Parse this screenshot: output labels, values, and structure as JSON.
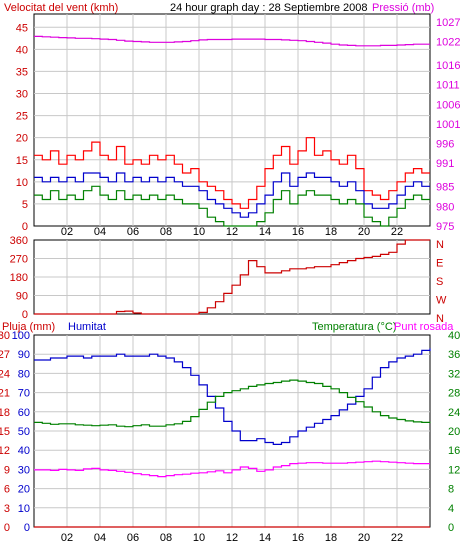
{
  "header": {
    "wind_title": "Velocitat del vent (kmh)",
    "graph_title": "24 hour graph day : 28 Septiembre 2008",
    "pressure_title": "Pressió (mb)"
  },
  "bottom_header": {
    "rain_title": "Pluja (mm)",
    "humidity_title": "Humitat",
    "temp_title": "Temperatura (°C)",
    "dew_title": "Punt rosada"
  },
  "colors": {
    "wind_gust": "#ff0000",
    "wind_avg": "#0000cc",
    "wind_low": "#008000",
    "pressure": "#dd00dd",
    "direction": "#cc0000",
    "humidity": "#0000cc",
    "temperature": "#008000",
    "dew_point": "#ff00ff",
    "rain": "#cc0000",
    "grid": "#c8c8c8",
    "dark_red_text": "#cc0000"
  },
  "time_ticks": [
    "02",
    "04",
    "06",
    "08",
    "10",
    "12",
    "14",
    "16",
    "18",
    "20",
    "22"
  ],
  "chart_data": [
    {
      "type": "line",
      "name": "wind-pressure",
      "x_hours": [
        0.0,
        0.5,
        1.0,
        1.5,
        2.0,
        2.5,
        3.0,
        3.5,
        4.0,
        4.5,
        5.0,
        5.5,
        6.0,
        6.5,
        7.0,
        7.5,
        8.0,
        8.5,
        9.0,
        9.5,
        10.0,
        10.5,
        11.0,
        11.5,
        12.0,
        12.5,
        13.0,
        13.5,
        14.0,
        14.5,
        15.0,
        15.5,
        16.0,
        16.5,
        17.0,
        17.5,
        18.0,
        18.5,
        19.0,
        19.5,
        20.0,
        20.5,
        21.0,
        21.5,
        22.0,
        22.5,
        23.0,
        23.5,
        24.0
      ],
      "left_axis": {
        "label": "Velocitat del vent (kmh)",
        "ticks": [
          0,
          5,
          10,
          15,
          20,
          25,
          30,
          35,
          40,
          45
        ],
        "range": [
          0,
          48
        ]
      },
      "right_axis": {
        "label": "Pressió (mb)",
        "ticks": [
          975,
          980,
          985,
          991,
          996,
          1001,
          1006,
          1011,
          1016,
          1022,
          1027
        ],
        "range": [
          975,
          1029
        ]
      },
      "series": [
        {
          "name": "gust",
          "axis": "left",
          "color": "#ff0000",
          "values": [
            16,
            15,
            17,
            14,
            16,
            15,
            17,
            19,
            16,
            15,
            18,
            14,
            15,
            14,
            16,
            15,
            16,
            14,
            12,
            13,
            10,
            9,
            8,
            6,
            5,
            4,
            6,
            9,
            13,
            16,
            18,
            14,
            17,
            20,
            16,
            17,
            15,
            14,
            16,
            13,
            8,
            7,
            6,
            8,
            10,
            12,
            13,
            12,
            12
          ]
        },
        {
          "name": "average",
          "axis": "left",
          "color": "#0000cc",
          "values": [
            11,
            10,
            11,
            10,
            11,
            10,
            12,
            12,
            11,
            10,
            12,
            10,
            11,
            10,
            11,
            10,
            11,
            10,
            9,
            9,
            8,
            6,
            5,
            4,
            3,
            2,
            3,
            5,
            7,
            10,
            12,
            9,
            11,
            12,
            11,
            11,
            10,
            9,
            10,
            8,
            5,
            4,
            4,
            5,
            7,
            9,
            10,
            9,
            9
          ]
        },
        {
          "name": "low",
          "axis": "left",
          "color": "#008000",
          "values": [
            7,
            6,
            8,
            6,
            7,
            6,
            8,
            9,
            7,
            6,
            8,
            6,
            7,
            6,
            7,
            6,
            7,
            6,
            5,
            5,
            4,
            2,
            1,
            0,
            0,
            0,
            0,
            1,
            3,
            6,
            8,
            5,
            7,
            8,
            7,
            7,
            6,
            5,
            6,
            5,
            2,
            1,
            0,
            2,
            4,
            6,
            7,
            6,
            6
          ]
        },
        {
          "name": "pressure",
          "axis": "right",
          "color": "#dd00dd",
          "values": [
            1023.3,
            1023.2,
            1023.1,
            1023.0,
            1022.9,
            1022.8,
            1022.8,
            1022.7,
            1022.6,
            1022.5,
            1022.3,
            1022.1,
            1022.0,
            1021.9,
            1021.8,
            1021.8,
            1021.8,
            1021.9,
            1022.0,
            1022.2,
            1022.4,
            1022.5,
            1022.5,
            1022.5,
            1022.6,
            1022.6,
            1022.6,
            1022.6,
            1022.5,
            1022.5,
            1022.4,
            1022.3,
            1022.2,
            1022.0,
            1021.8,
            1021.6,
            1021.3,
            1021.1,
            1021.0,
            1020.9,
            1020.9,
            1020.9,
            1021.0,
            1021.0,
            1021.1,
            1021.2,
            1021.3,
            1021.3,
            1021.3
          ]
        }
      ]
    },
    {
      "type": "line",
      "name": "wind-direction",
      "x_hours": [
        0.0,
        0.5,
        1.0,
        1.5,
        2.0,
        2.5,
        3.0,
        3.5,
        4.0,
        4.5,
        5.0,
        5.5,
        6.0,
        6.5,
        7.0,
        7.5,
        8.0,
        8.5,
        9.0,
        9.5,
        10.0,
        10.5,
        11.0,
        11.5,
        12.0,
        12.5,
        13.0,
        13.5,
        14.0,
        14.5,
        15.0,
        15.5,
        16.0,
        16.5,
        17.0,
        17.5,
        18.0,
        18.5,
        19.0,
        19.5,
        20.0,
        20.5,
        21.0,
        21.5,
        22.0,
        22.5,
        23.0,
        23.5,
        24.0
      ],
      "left_axis": {
        "ticks": [
          0,
          90,
          180,
          270,
          360
        ],
        "range": [
          0,
          360
        ]
      },
      "right_axis": {
        "ticks": [
          "N",
          "E",
          "S",
          "W",
          "N"
        ]
      },
      "series": [
        {
          "name": "direction",
          "color": "#cc0000",
          "values": [
            0,
            0,
            0,
            0,
            0,
            0,
            0,
            0,
            0,
            0,
            12,
            14,
            5,
            0,
            0,
            0,
            0,
            0,
            0,
            0,
            8,
            30,
            60,
            100,
            140,
            190,
            260,
            230,
            200,
            200,
            210,
            220,
            220,
            225,
            230,
            230,
            240,
            250,
            260,
            270,
            275,
            280,
            290,
            300,
            340,
            360,
            360,
            360,
            360
          ]
        }
      ]
    },
    {
      "type": "line",
      "name": "humidity-temperature",
      "x_hours": [
        0.0,
        0.5,
        1.0,
        1.5,
        2.0,
        2.5,
        3.0,
        3.5,
        4.0,
        4.5,
        5.0,
        5.5,
        6.0,
        6.5,
        7.0,
        7.5,
        8.0,
        8.5,
        9.0,
        9.5,
        10.0,
        10.5,
        11.0,
        11.5,
        12.0,
        12.5,
        13.0,
        13.5,
        14.0,
        14.5,
        15.0,
        15.5,
        16.0,
        16.5,
        17.0,
        17.5,
        18.0,
        18.5,
        19.0,
        19.5,
        20.0,
        20.5,
        21.0,
        21.5,
        22.0,
        22.5,
        23.0,
        23.5,
        24.0
      ],
      "left_axis": {
        "label": "Pluja (mm) / Humitat",
        "humidity_ticks": [
          0,
          10,
          20,
          30,
          40,
          50,
          60,
          70,
          80,
          90,
          100
        ],
        "rain_ticks": [
          0,
          3,
          6,
          9,
          12,
          15,
          18,
          21,
          24,
          27,
          30
        ]
      },
      "right_axis": {
        "label": "Temperatura (°C) / Punt rosada",
        "ticks": [
          0,
          4,
          8,
          12,
          16,
          20,
          24,
          28,
          32,
          36,
          40
        ],
        "range": [
          0,
          40
        ]
      },
      "series": [
        {
          "name": "humidity",
          "axis": "left",
          "color": "#0000cc",
          "values": [
            87,
            87,
            88,
            88,
            89,
            89,
            88,
            89,
            89,
            89,
            90,
            89,
            89,
            89,
            90,
            89,
            88,
            86,
            83,
            79,
            74,
            68,
            62,
            55,
            50,
            45,
            45,
            46,
            44,
            43,
            44,
            47,
            50,
            52,
            54,
            56,
            58,
            61,
            64,
            68,
            72,
            78,
            83,
            86,
            88,
            89,
            90,
            92,
            93
          ]
        },
        {
          "name": "temperature",
          "axis": "right",
          "color": "#008000",
          "values": [
            21.8,
            21.6,
            21.4,
            21.5,
            21.5,
            21.3,
            21.2,
            21.1,
            21.2,
            21.3,
            21.0,
            20.9,
            21.1,
            21.3,
            21.0,
            21.0,
            21.3,
            21.5,
            22.0,
            23.0,
            24.5,
            26.0,
            27.2,
            28.0,
            28.4,
            28.8,
            29.3,
            29.6,
            29.9,
            30.1,
            30.4,
            30.6,
            30.4,
            30.1,
            29.9,
            29.3,
            28.8,
            28.0,
            27.0,
            26.1,
            25.0,
            24.0,
            23.2,
            22.7,
            22.4,
            22.1,
            21.9,
            21.8,
            21.7
          ]
        },
        {
          "name": "dew_point",
          "axis": "right",
          "color": "#ff00ff",
          "values": [
            11.9,
            11.9,
            11.8,
            12.0,
            11.9,
            11.8,
            12.1,
            12.2,
            11.9,
            11.8,
            11.6,
            11.4,
            11.1,
            10.9,
            10.7,
            10.5,
            10.7,
            10.9,
            11.0,
            11.2,
            11.3,
            11.5,
            11.7,
            11.3,
            11.9,
            12.5,
            12.2,
            11.6,
            11.9,
            12.5,
            12.8,
            13.2,
            13.3,
            13.4,
            13.4,
            13.3,
            13.3,
            13.3,
            13.4,
            13.5,
            13.6,
            13.7,
            13.6,
            13.5,
            13.4,
            13.3,
            13.2,
            13.2,
            13.2
          ]
        },
        {
          "name": "rain",
          "axis": "left",
          "color": "#cc0000",
          "values": [
            0,
            0,
            0,
            0,
            0,
            0,
            0,
            0,
            0,
            0,
            0,
            0,
            0,
            0,
            0,
            0,
            0,
            0,
            0,
            0,
            0,
            0,
            0,
            0,
            0,
            0,
            0,
            0,
            0,
            0,
            0,
            0,
            0,
            0,
            0,
            0,
            0,
            0,
            0,
            0,
            0,
            0,
            0,
            0,
            0,
            0,
            0,
            0,
            0
          ]
        }
      ]
    }
  ]
}
